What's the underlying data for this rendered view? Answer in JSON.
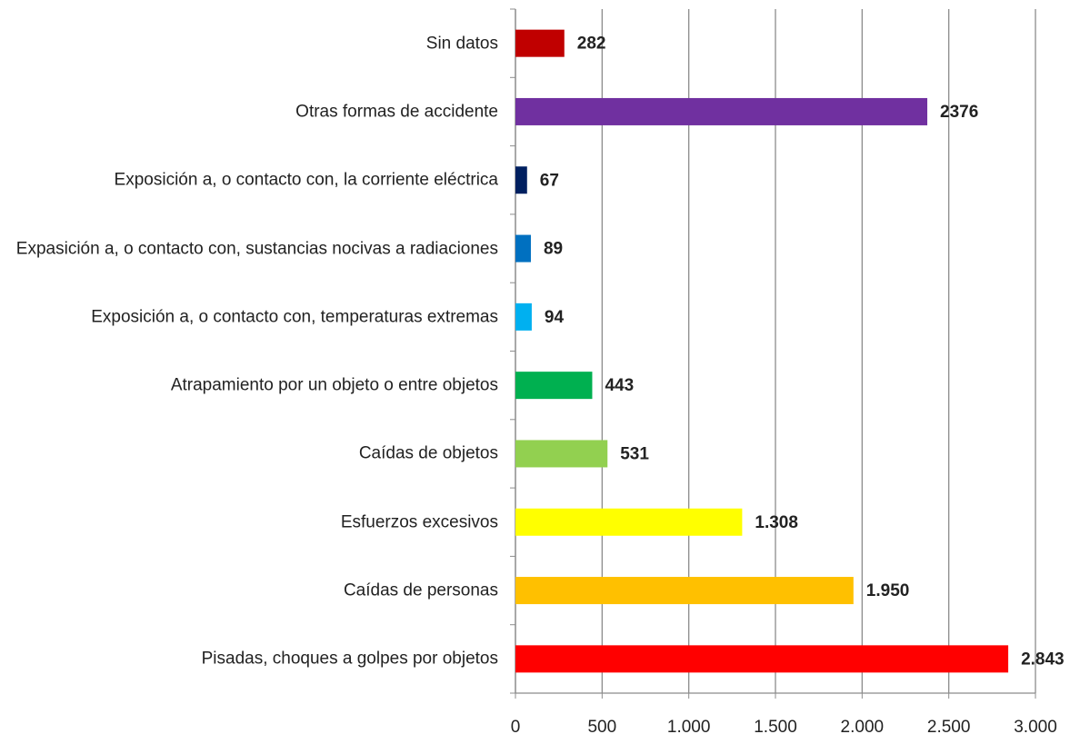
{
  "chart_data": {
    "type": "barh",
    "categories": [
      "Sin datos",
      "Otras formas de accidente",
      "Exposición a, o contacto con, la corriente eléctrica",
      "Expasición a, o contacto con, sustancias nocivas a radiaciones",
      "Exposición a, o contacto con, temperaturas extremas",
      "Atrapamiento por un objeto o entre objetos",
      "Caídas de objetos",
      "Esfuerzos excesivos",
      "Caídas de personas",
      "Pisadas, choques a golpes por objetos"
    ],
    "values": [
      282,
      2376,
      67,
      89,
      94,
      443,
      531,
      1308,
      1950,
      2843
    ],
    "value_labels": [
      "282",
      "2376",
      "67",
      "89",
      "94",
      "443",
      "531",
      "1.308",
      "1.950",
      "2.843"
    ],
    "colors": [
      "#c00000",
      "#7030a0",
      "#002060",
      "#0070c0",
      "#00b0f0",
      "#00b050",
      "#92d050",
      "#ffff00",
      "#ffc000",
      "#ff0000"
    ],
    "xlim": [
      0,
      3000
    ],
    "xticks": [
      0,
      500,
      {
        "value": 1000,
        "label": "1.000"
      },
      {
        "value": 1500,
        "label": "1.500"
      },
      {
        "value": 2000,
        "label": "2.000"
      },
      {
        "value": 2500,
        "label": "2.500"
      },
      {
        "value": 3000,
        "label": "3.000"
      }
    ],
    "grid": true
  }
}
